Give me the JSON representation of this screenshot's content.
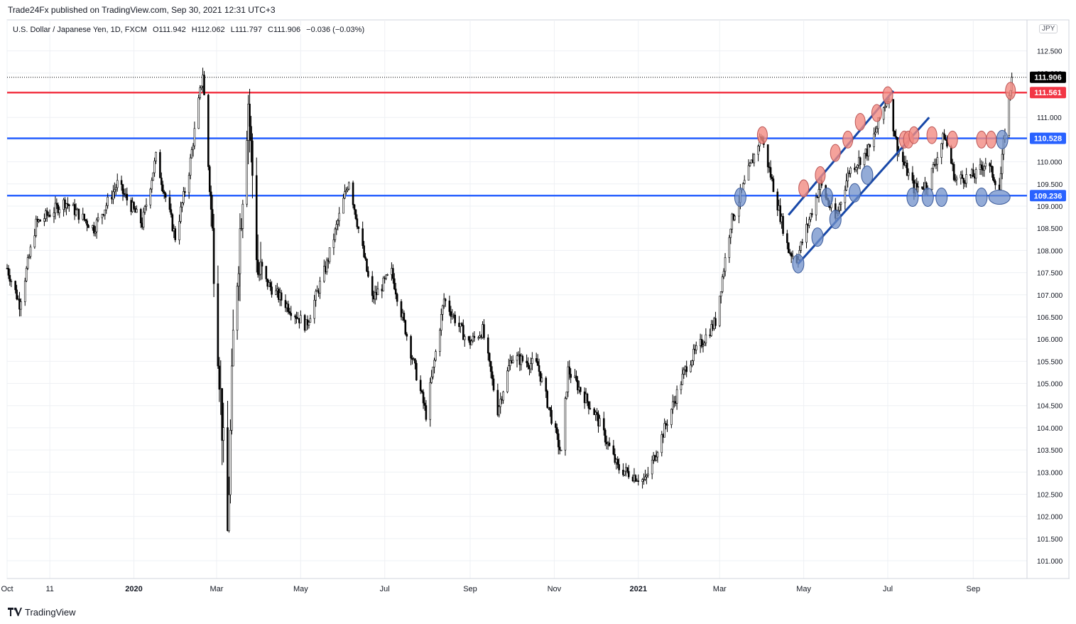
{
  "publisher_line": "Trade24Fx published on TradingView.com, Sep 30, 2021 12:31 UTC+3",
  "brand": "TradingView",
  "legend": {
    "symbol": "U.S. Dollar / Japanese Yen, 1D, FXCM",
    "open": "O111.942",
    "high": "H112.062",
    "low": "L111.797",
    "close": "C111.906",
    "change": "−0.036 (−0.03%)"
  },
  "currency": "JPY",
  "colors": {
    "candle": "#000000",
    "resistance_red": "#f23645",
    "support_blue": "#2962ff",
    "channel_blue": "#1848a8",
    "marker_red": "#f28b82",
    "marker_blue": "#6f8fc9",
    "grid": "#eef0f4",
    "last_price_label": "#000000"
  },
  "chart_data": {
    "type": "candlestick",
    "symbol": "USDJPY",
    "interval": "1D",
    "ylim": [
      100.6,
      113.2
    ],
    "price_ticks": [
      101.0,
      101.5,
      102.0,
      102.5,
      103.0,
      103.5,
      104.0,
      104.5,
      105.0,
      105.5,
      106.0,
      106.5,
      107.0,
      107.5,
      108.0,
      108.5,
      109.0,
      109.5,
      110.0,
      110.5,
      111.0,
      112.0,
      112.5
    ],
    "x_range": [
      "2019-10-01",
      "2021-10-10"
    ],
    "time_ticks": [
      {
        "date": "2019-10-01",
        "label": "Oct"
      },
      {
        "date": "2019-11-01",
        "label": "11"
      },
      {
        "date": "2020-01-01",
        "label": "2020"
      },
      {
        "date": "2020-03-01",
        "label": "Mar"
      },
      {
        "date": "2020-05-01",
        "label": "May"
      },
      {
        "date": "2020-07-01",
        "label": "Jul"
      },
      {
        "date": "2020-09-01",
        "label": "Sep"
      },
      {
        "date": "2020-11-01",
        "label": "Nov"
      },
      {
        "date": "2021-01-01",
        "label": "2021"
      },
      {
        "date": "2021-03-01",
        "label": "Mar"
      },
      {
        "date": "2021-05-01",
        "label": "May"
      },
      {
        "date": "2021-07-01",
        "label": "Jul"
      },
      {
        "date": "2021-09-01",
        "label": "Sep"
      }
    ],
    "anchors": [
      [
        "2019-10-01",
        107.6
      ],
      [
        "2019-10-10",
        106.8
      ],
      [
        "2019-10-22",
        108.6
      ],
      [
        "2019-11-12",
        109.1
      ],
      [
        "2019-12-03",
        108.5
      ],
      [
        "2019-12-20",
        109.5
      ],
      [
        "2020-01-07",
        108.6
      ],
      [
        "2020-01-17",
        110.1
      ],
      [
        "2020-01-31",
        108.3
      ],
      [
        "2020-02-10",
        109.8
      ],
      [
        "2020-02-20",
        112.0
      ],
      [
        "2020-02-28",
        107.8
      ],
      [
        "2020-03-09",
        101.6
      ],
      [
        "2020-03-13",
        106.0
      ],
      [
        "2020-03-24",
        111.4
      ],
      [
        "2020-03-31",
        107.5
      ],
      [
        "2020-04-14",
        107.0
      ],
      [
        "2020-05-05",
        106.3
      ],
      [
        "2020-05-20",
        107.7
      ],
      [
        "2020-06-05",
        109.6
      ],
      [
        "2020-06-22",
        106.9
      ],
      [
        "2020-07-06",
        107.5
      ],
      [
        "2020-07-31",
        104.3
      ],
      [
        "2020-08-13",
        106.9
      ],
      [
        "2020-08-31",
        105.9
      ],
      [
        "2020-09-10",
        106.2
      ],
      [
        "2020-09-21",
        104.4
      ],
      [
        "2020-10-01",
        105.6
      ],
      [
        "2020-10-20",
        105.4
      ],
      [
        "2020-11-06",
        103.4
      ],
      [
        "2020-11-11",
        105.3
      ],
      [
        "2020-12-01",
        104.3
      ],
      [
        "2020-12-17",
        103.1
      ],
      [
        "2021-01-06",
        102.8
      ],
      [
        "2021-01-18",
        103.8
      ],
      [
        "2021-02-05",
        105.4
      ],
      [
        "2021-02-26",
        106.4
      ],
      [
        "2021-03-09",
        108.6
      ],
      [
        "2021-03-31",
        110.6
      ],
      [
        "2021-04-20",
        108.0
      ],
      [
        "2021-04-26",
        107.8
      ],
      [
        "2021-05-13",
        109.5
      ],
      [
        "2021-05-24",
        108.7
      ],
      [
        "2021-06-03",
        109.8
      ],
      [
        "2021-06-18",
        110.3
      ],
      [
        "2021-07-01",
        111.5
      ],
      [
        "2021-07-08",
        110.3
      ],
      [
        "2021-07-20",
        109.4
      ],
      [
        "2021-07-30",
        109.5
      ],
      [
        "2021-08-11",
        110.6
      ],
      [
        "2021-08-19",
        109.6
      ],
      [
        "2021-09-03",
        109.7
      ],
      [
        "2021-09-10",
        110.0
      ],
      [
        "2021-09-17",
        109.6
      ],
      [
        "2021-09-20",
        109.4
      ],
      [
        "2021-09-24",
        110.7
      ],
      [
        "2021-09-29",
        111.9
      ]
    ],
    "horizontal_levels": [
      {
        "price": 111.561,
        "label": "111.561",
        "color": "#f23645"
      },
      {
        "price": 110.528,
        "label": "110.528",
        "color": "#2962ff"
      },
      {
        "price": 109.236,
        "label": "109.236",
        "color": "#2962ff"
      }
    ],
    "last_price": {
      "price": 111.906,
      "label": "111.906"
    },
    "trend_lines": [
      {
        "from": [
          "2021-04-20",
          108.8
        ],
        "to": [
          "2021-07-05",
          111.6
        ]
      },
      {
        "from": [
          "2021-04-27",
          107.7
        ],
        "to": [
          "2021-07-31",
          111.0
        ]
      }
    ],
    "red_markers": [
      [
        "2021-04-01",
        110.6
      ],
      [
        "2021-05-01",
        109.4
      ],
      [
        "2021-05-13",
        109.7
      ],
      [
        "2021-05-24",
        110.2
      ],
      [
        "2021-06-02",
        110.5
      ],
      [
        "2021-06-11",
        110.9
      ],
      [
        "2021-06-23",
        111.1
      ],
      [
        "2021-07-01",
        111.5
      ],
      [
        "2021-07-13",
        110.5
      ],
      [
        "2021-07-16",
        110.5
      ],
      [
        "2021-07-20",
        110.6
      ],
      [
        "2021-08-02",
        110.6
      ],
      [
        "2021-08-17",
        110.5
      ],
      [
        "2021-09-07",
        110.5
      ],
      [
        "2021-09-14",
        110.5
      ],
      [
        "2021-09-28",
        111.6
      ]
    ],
    "blue_markers": [
      [
        "2021-03-16",
        109.2
      ],
      [
        "2021-04-27",
        107.7
      ],
      [
        "2021-05-11",
        108.3
      ],
      [
        "2021-05-18",
        109.2
      ],
      [
        "2021-05-24",
        108.7
      ],
      [
        "2021-06-07",
        109.3
      ],
      [
        "2021-06-16",
        109.7
      ],
      [
        "2021-07-19",
        109.2
      ],
      [
        "2021-07-30",
        109.2
      ],
      [
        "2021-08-09",
        109.2
      ],
      [
        "2021-09-07",
        109.2
      ],
      [
        "2021-09-22",
        110.5
      ]
    ],
    "red_wide_markers": [
      [
        "2021-09-20",
        109.2
      ]
    ]
  }
}
